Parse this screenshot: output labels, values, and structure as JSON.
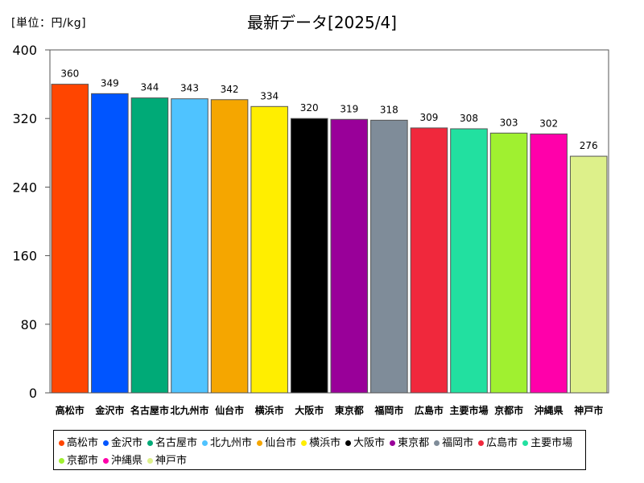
{
  "header": {
    "unit": "[単位：円/kg]",
    "title": "最新データ[2025/4]"
  },
  "chart_data": {
    "type": "bar",
    "title": "最新データ[2025/4]",
    "ylabel": "[単位：円/kg]",
    "xlabel": "",
    "ylim": [
      0,
      400
    ],
    "yticks": [
      0,
      80,
      160,
      240,
      320,
      400
    ],
    "grid": false,
    "legend_position": "bottom",
    "categories": [
      "高松市",
      "金沢市",
      "名古屋市",
      "北九州市",
      "仙台市",
      "横浜市",
      "大阪市",
      "東京都",
      "福岡市",
      "広島市",
      "主要市場",
      "京都市",
      "沖縄県",
      "神戸市"
    ],
    "values": [
      360,
      349,
      344,
      343,
      342,
      334,
      320,
      319,
      318,
      309,
      308,
      303,
      302,
      276
    ],
    "colors": [
      "#ff4500",
      "#0055ff",
      "#00aa77",
      "#4fc3ff",
      "#f5a600",
      "#ffee00",
      "#000000",
      "#990099",
      "#7f8c99",
      "#f0283c",
      "#22e0a0",
      "#a0f030",
      "#ff00aa",
      "#ddf08a"
    ]
  }
}
